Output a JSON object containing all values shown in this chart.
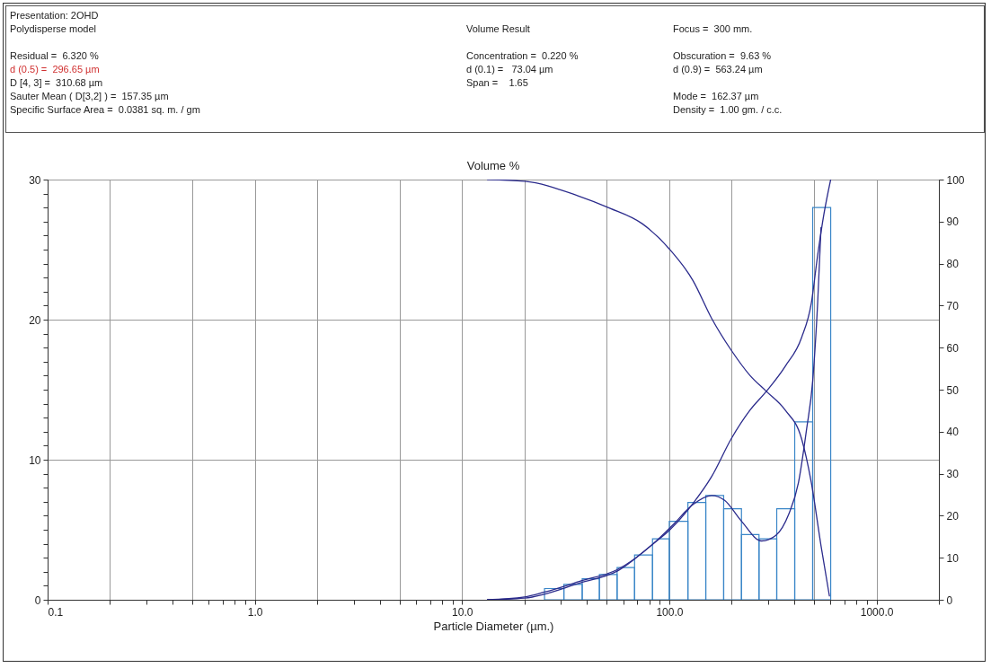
{
  "chart_data": {
    "type": "histogram",
    "title": "Volume %",
    "xlabel": "Particle Diameter (µm.)",
    "annotations": [
      "Presentation: 2OHD",
      "Polydisperse model",
      "Volume Result",
      "Focus =  300 mm.",
      "Residual =  6.320 %",
      "Concentration =  0.220 %",
      "Obscuration =  9.63 %",
      "d (0.5) =  296.65 µm",
      "d (0.1) =   73.04 µm",
      "d (0.9) =  563.24 µm",
      "D [4, 3] =  310.68 µm",
      "Span =    1.65",
      "Sauter Mean ( D[3,2] ) =  157.35 µm",
      "Mode =  162.37 µm",
      "Specific Surface Area =  0.0381 sq. m. / gm",
      "Density =  1.00 gm. / c.c."
    ],
    "bins": [
      25,
      31,
      38,
      46,
      56,
      68,
      83,
      100,
      123,
      150,
      183,
      223,
      271,
      330,
      403,
      492,
      601
    ],
    "values": [
      0.8,
      1.1,
      1.5,
      1.8,
      2.3,
      3.2,
      4.35,
      5.6,
      6.95,
      7.45,
      6.5,
      4.65,
      4.35,
      6.5,
      12.7,
      28.0
    ],
    "color": "#3a86c8",
    "series": [
      {
        "type": "line",
        "color": "#2b2b8c",
        "x": [
          13.2,
          20,
          25,
          37.6,
          56,
          83,
          105,
          130,
          160,
          185,
          222,
          279,
          327,
          377,
          420,
          460,
          492,
          520,
          540
        ],
        "values": [
          0,
          0.2,
          0.55,
          1.35,
          2.15,
          3.95,
          5.4,
          6.8,
          7.45,
          7.1,
          5.65,
          4.2,
          4.6,
          6.1,
          8.35,
          12.2,
          15.6,
          21.2,
          26.6
        ]
      },
      {
        "type": "line",
        "axis": "y2",
        "color": "#2b2b8c",
        "x": [
          13.2,
          20,
          37.6,
          56,
          83,
          100,
          130,
          160,
          199,
          245,
          294,
          363,
          435,
          485,
          520,
          557,
          601
        ],
        "values": [
          0,
          0.4,
          4.1,
          6.8,
          13.2,
          16.5,
          22.9,
          29.3,
          38.3,
          45.1,
          49.6,
          55.6,
          62.4,
          70.7,
          82,
          91.7,
          100
        ]
      },
      {
        "type": "line",
        "axis": "y2",
        "color": "#2b2b8c",
        "x": [
          13.2,
          20,
          36,
          51.6,
          74,
          100,
          130,
          160,
          199,
          245,
          294,
          363,
          435,
          485,
          540,
          593
        ],
        "values": [
          100,
          99.6,
          96.2,
          93.2,
          89.5,
          83.5,
          76,
          67,
          59.4,
          53.4,
          49.6,
          45.1,
          38.3,
          27.8,
          12.8,
          0.8
        ]
      }
    ],
    "xlim": [
      0.1,
      2000
    ],
    "xticks": [
      0.1,
      {
        "value": 0.2,
        "label": null
      },
      {
        "value": 0.3,
        "label": null
      },
      {
        "value": 0.4,
        "label": null
      },
      {
        "value": 0.5,
        "label": null
      },
      {
        "value": 0.6,
        "label": null
      },
      {
        "value": 0.7,
        "label": null
      },
      {
        "value": 0.8,
        "label": null
      },
      {
        "value": 0.9,
        "label": null
      },
      {
        "value": 1,
        "label": "1.0"
      },
      {
        "value": 2,
        "label": null
      },
      {
        "value": 3,
        "label": null
      },
      {
        "value": 4,
        "label": null
      },
      {
        "value": 5,
        "label": null
      },
      {
        "value": 6,
        "label": null
      },
      {
        "value": 7,
        "label": null
      },
      {
        "value": 8,
        "label": null
      },
      {
        "value": 9,
        "label": null
      },
      {
        "value": 10,
        "label": "10.0"
      },
      {
        "value": 20,
        "label": null
      },
      {
        "value": 30,
        "label": null
      },
      {
        "value": 40,
        "label": null
      },
      {
        "value": 50,
        "label": null
      },
      {
        "value": 60,
        "label": null
      },
      {
        "value": 70,
        "label": null
      },
      {
        "value": 80,
        "label": null
      },
      {
        "value": 90,
        "label": null
      },
      {
        "value": 100,
        "label": "100.0"
      },
      {
        "value": 200,
        "label": null
      },
      {
        "value": 300,
        "label": null
      },
      {
        "value": 400,
        "label": null
      },
      {
        "value": 500,
        "label": null
      },
      {
        "value": 600,
        "label": null
      },
      {
        "value": 700,
        "label": null
      },
      {
        "value": 800,
        "label": null
      },
      {
        "value": 900,
        "label": null
      },
      {
        "value": 1000,
        "label": "1000.0"
      },
      {
        "value": 2000,
        "label": null
      }
    ],
    "ylim": [
      0,
      30
    ],
    "yticks": [
      0,
      {
        "value": 1,
        "label": null
      },
      {
        "value": 2,
        "label": null
      },
      {
        "value": 3,
        "label": null
      },
      {
        "value": 4,
        "label": null
      },
      {
        "value": 5,
        "label": null
      },
      {
        "value": 6,
        "label": null
      },
      {
        "value": 7,
        "label": null
      },
      {
        "value": 8,
        "label": null
      },
      {
        "value": 9,
        "label": null
      },
      10,
      {
        "value": 11,
        "label": null
      },
      {
        "value": 12,
        "label": null
      },
      {
        "value": 13,
        "label": null
      },
      {
        "value": 14,
        "label": null
      },
      {
        "value": 15,
        "label": null
      },
      {
        "value": 16,
        "label": null
      },
      {
        "value": 17,
        "label": null
      },
      {
        "value": 18,
        "label": null
      },
      {
        "value": 19,
        "label": null
      },
      20,
      {
        "value": 21,
        "label": null
      },
      {
        "value": 22,
        "label": null
      },
      {
        "value": 23,
        "label": null
      },
      {
        "value": 24,
        "label": null
      },
      {
        "value": 25,
        "label": null
      },
      {
        "value": 26,
        "label": null
      },
      {
        "value": 27,
        "label": null
      },
      {
        "value": 28,
        "label": null
      },
      {
        "value": 29,
        "label": null
      },
      30
    ],
    "y2lim": [
      0,
      100
    ],
    "y2ticks": [
      0,
      10,
      20,
      30,
      40,
      50,
      60,
      70,
      80,
      90,
      100
    ],
    "log": "x",
    "grid": true
  }
}
